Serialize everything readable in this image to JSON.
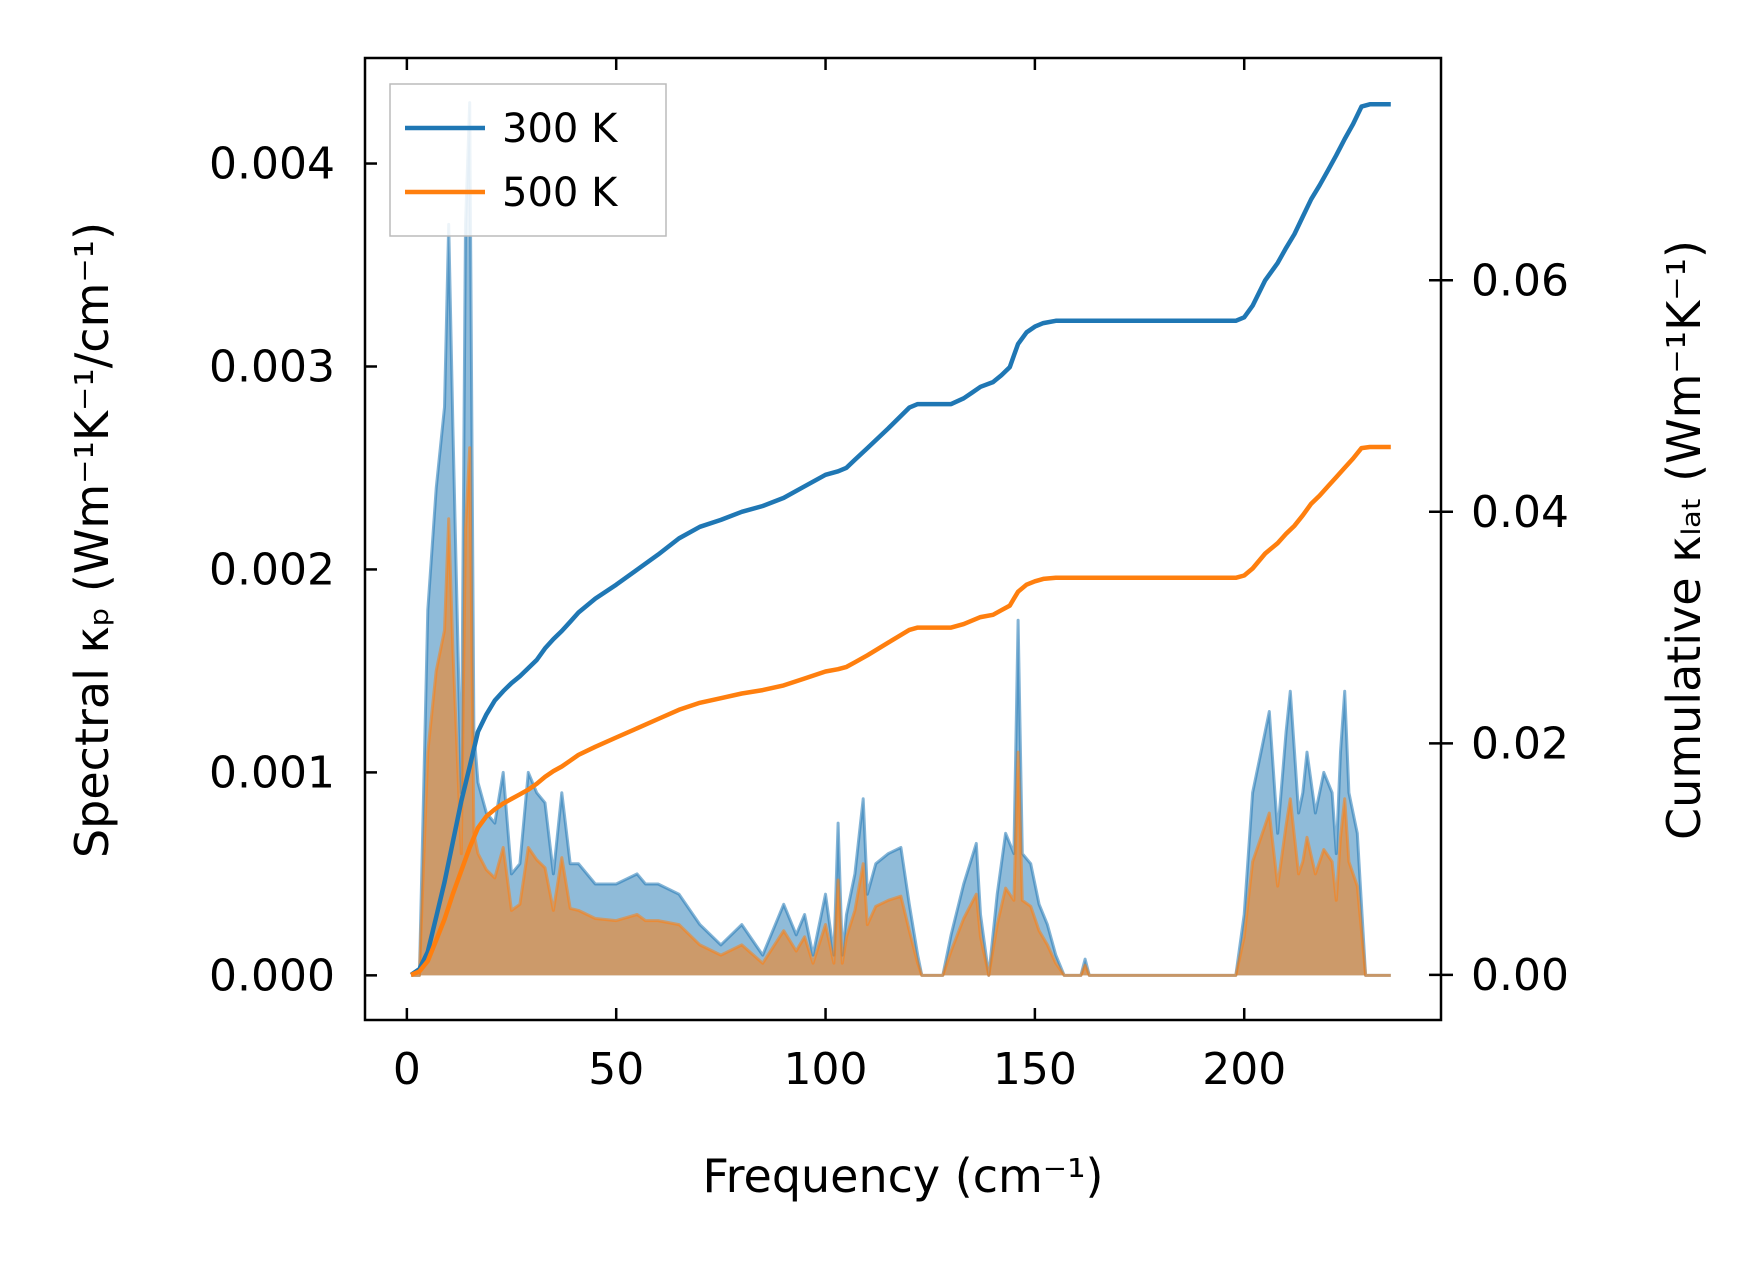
{
  "chart_data": {
    "type": "area",
    "title": "",
    "xlabel": "Frequency (cm⁻¹)",
    "ylabel_left": "Spectral κₚ (Wm⁻¹K⁻¹/cm⁻¹)",
    "ylabel_right": "Cumulative κₗₐₜ (Wm⁻¹K⁻¹)",
    "xlim": [
      -10,
      247
    ],
    "ylim_left": [
      -0.00022,
      0.00452
    ],
    "ylim_right": [
      -0.0039,
      0.0792
    ],
    "xticks": [
      0,
      50,
      100,
      150,
      200
    ],
    "xtick_labels": [
      "0",
      "50",
      "100",
      "150",
      "200"
    ],
    "yticks_left": [
      0.0,
      0.001,
      0.002,
      0.003,
      0.004
    ],
    "ytick_labels_left": [
      "0.000",
      "0.001",
      "0.002",
      "0.003",
      "0.004"
    ],
    "yticks_right": [
      0.0,
      0.02,
      0.04,
      0.06
    ],
    "ytick_labels_right": [
      "0.00",
      "0.02",
      "0.04",
      "0.06"
    ],
    "grid": false,
    "legend_position": "top-left",
    "legend": [
      {
        "label": "300 K",
        "color": "#1f77b4"
      },
      {
        "label": "500 K",
        "color": "#ff7f0e"
      }
    ],
    "spectral": {
      "x": [
        1,
        3,
        5,
        7,
        9,
        10,
        11,
        13,
        14,
        15,
        16,
        17,
        19,
        21,
        23,
        25,
        27,
        29,
        31,
        33,
        35,
        37,
        39,
        41,
        45,
        50,
        55,
        57,
        60,
        65,
        70,
        75,
        80,
        85,
        90,
        93,
        95,
        97,
        100,
        102,
        103,
        104,
        105,
        107,
        109,
        110,
        112,
        115,
        118,
        120,
        122,
        123,
        125,
        128,
        130,
        133,
        136,
        137,
        139,
        141,
        143,
        145,
        146,
        147,
        149,
        151,
        153,
        155,
        157,
        159,
        161,
        162,
        163,
        165,
        170,
        180,
        190,
        198,
        200,
        202,
        204,
        206,
        208,
        210,
        211,
        212,
        213,
        214,
        215,
        217,
        219,
        221,
        222,
        223,
        224,
        225,
        227,
        229,
        231,
        233,
        235
      ],
      "series": [
        {
          "name": "300 K",
          "color": "#1f77b4",
          "values": [
            0.0,
            0.0,
            0.0018,
            0.0024,
            0.0028,
            0.0037,
            0.0027,
            0.0009,
            0.0037,
            0.0043,
            0.0012,
            0.00095,
            0.0008,
            0.00075,
            0.001,
            0.0005,
            0.00055,
            0.001,
            0.0009,
            0.00085,
            0.0005,
            0.0009,
            0.00055,
            0.00055,
            0.00045,
            0.00045,
            0.0005,
            0.00045,
            0.00045,
            0.0004,
            0.00025,
            0.00015,
            0.00025,
            0.0001,
            0.00035,
            0.0002,
            0.0003,
            0.0001,
            0.0004,
            0.0001,
            0.00075,
            0.0001,
            0.0003,
            0.0005,
            0.00087,
            0.0004,
            0.00055,
            0.0006,
            0.00063,
            0.00035,
            0.0001,
            0.0,
            0.0,
            0.0,
            0.0002,
            0.00045,
            0.00065,
            0.0003,
            0.0,
            0.0004,
            0.0007,
            0.0006,
            0.00175,
            0.0006,
            0.00055,
            0.00035,
            0.00025,
            0.0001,
            0.0,
            0.0,
            0.0,
            8e-05,
            0.0,
            0.0,
            0.0,
            0.0,
            0.0,
            0.0,
            0.0003,
            0.0009,
            0.0011,
            0.0013,
            0.0007,
            0.0012,
            0.0014,
            0.0011,
            0.0008,
            0.0009,
            0.0011,
            0.0008,
            0.001,
            0.0009,
            0.0006,
            0.0011,
            0.0014,
            0.0009,
            0.0007,
            0.0,
            0.0,
            0.0,
            0.0
          ]
        },
        {
          "name": "500 K",
          "color": "#ff7f0e",
          "values": [
            0.0,
            0.0,
            0.0011,
            0.0015,
            0.0017,
            0.00225,
            0.0016,
            0.0006,
            0.0022,
            0.0026,
            0.0007,
            0.0006,
            0.00052,
            0.00048,
            0.00063,
            0.00032,
            0.00035,
            0.00063,
            0.00057,
            0.00053,
            0.00032,
            0.00058,
            0.00033,
            0.00032,
            0.00028,
            0.00027,
            0.0003,
            0.00027,
            0.00027,
            0.00025,
            0.00015,
            0.0001,
            0.00015,
            6e-05,
            0.00022,
            0.00012,
            0.00019,
            6e-05,
            0.00025,
            6e-05,
            0.00047,
            6e-05,
            0.00019,
            0.00032,
            0.00055,
            0.00025,
            0.00034,
            0.00037,
            0.00039,
            0.00022,
            6e-05,
            0.0,
            0.0,
            0.0,
            0.00012,
            0.00028,
            0.0004,
            0.00019,
            0.0,
            0.00025,
            0.00043,
            0.00037,
            0.0011,
            0.00037,
            0.00034,
            0.00022,
            0.00015,
            6e-05,
            0.0,
            0.0,
            0.0,
            5e-05,
            0.0,
            0.0,
            0.0,
            0.0,
            0.0,
            0.0,
            0.00019,
            0.00056,
            0.00068,
            0.0008,
            0.00044,
            0.00074,
            0.00087,
            0.00068,
            0.0005,
            0.00056,
            0.00068,
            0.0005,
            0.00062,
            0.00056,
            0.00037,
            0.00068,
            0.00087,
            0.00056,
            0.00044,
            0.0,
            0.0,
            0.0,
            0.0
          ]
        }
      ]
    },
    "cumulative": {
      "x": [
        1,
        3,
        5,
        7,
        9,
        11,
        13,
        15,
        17,
        19,
        21,
        23,
        25,
        27,
        29,
        31,
        33,
        35,
        37,
        39,
        41,
        45,
        50,
        55,
        60,
        65,
        70,
        75,
        80,
        85,
        90,
        95,
        100,
        103,
        105,
        107,
        110,
        115,
        120,
        122,
        125,
        130,
        133,
        135,
        137,
        140,
        142,
        144,
        145,
        146,
        148,
        150,
        152,
        155,
        160,
        180,
        195,
        198,
        200,
        202,
        205,
        208,
        210,
        212,
        214,
        216,
        218,
        220,
        222,
        224,
        226,
        228,
        230,
        235
      ],
      "series": [
        {
          "name": "300 K",
          "color": "#1f77b4",
          "values": [
            0.0,
            0.0005,
            0.002,
            0.005,
            0.008,
            0.0115,
            0.015,
            0.018,
            0.021,
            0.0225,
            0.0237,
            0.0245,
            0.0252,
            0.0258,
            0.0265,
            0.0272,
            0.0282,
            0.029,
            0.0297,
            0.0305,
            0.0313,
            0.0325,
            0.0337,
            0.035,
            0.0363,
            0.0377,
            0.0387,
            0.0393,
            0.04,
            0.0405,
            0.0412,
            0.0422,
            0.0432,
            0.0435,
            0.0438,
            0.0445,
            0.0455,
            0.0472,
            0.049,
            0.0493,
            0.0493,
            0.0493,
            0.0498,
            0.0503,
            0.0508,
            0.0512,
            0.0518,
            0.0525,
            0.0535,
            0.0545,
            0.0555,
            0.056,
            0.0563,
            0.0565,
            0.0565,
            0.0565,
            0.0565,
            0.0565,
            0.0568,
            0.0578,
            0.06,
            0.0615,
            0.0628,
            0.064,
            0.0655,
            0.067,
            0.0682,
            0.0695,
            0.0708,
            0.0722,
            0.0735,
            0.075,
            0.0752,
            0.0752
          ]
        },
        {
          "name": "500 K",
          "color": "#ff7f0e",
          "values": [
            0.0,
            0.0003,
            0.0012,
            0.003,
            0.0048,
            0.007,
            0.009,
            0.011,
            0.0127,
            0.0137,
            0.0143,
            0.0148,
            0.0152,
            0.0156,
            0.016,
            0.0165,
            0.0171,
            0.0176,
            0.018,
            0.0185,
            0.019,
            0.0197,
            0.0205,
            0.0213,
            0.0221,
            0.0229,
            0.0235,
            0.0239,
            0.0243,
            0.0246,
            0.025,
            0.0256,
            0.0262,
            0.0264,
            0.0266,
            0.027,
            0.0276,
            0.0287,
            0.0298,
            0.03,
            0.03,
            0.03,
            0.0303,
            0.0306,
            0.0309,
            0.0311,
            0.0315,
            0.0319,
            0.0325,
            0.0331,
            0.0337,
            0.034,
            0.0342,
            0.0343,
            0.0343,
            0.0343,
            0.0343,
            0.0343,
            0.0345,
            0.0351,
            0.0364,
            0.0373,
            0.0381,
            0.0388,
            0.0397,
            0.0407,
            0.0414,
            0.0422,
            0.043,
            0.0438,
            0.0446,
            0.0455,
            0.0456,
            0.0456
          ]
        }
      ]
    }
  }
}
